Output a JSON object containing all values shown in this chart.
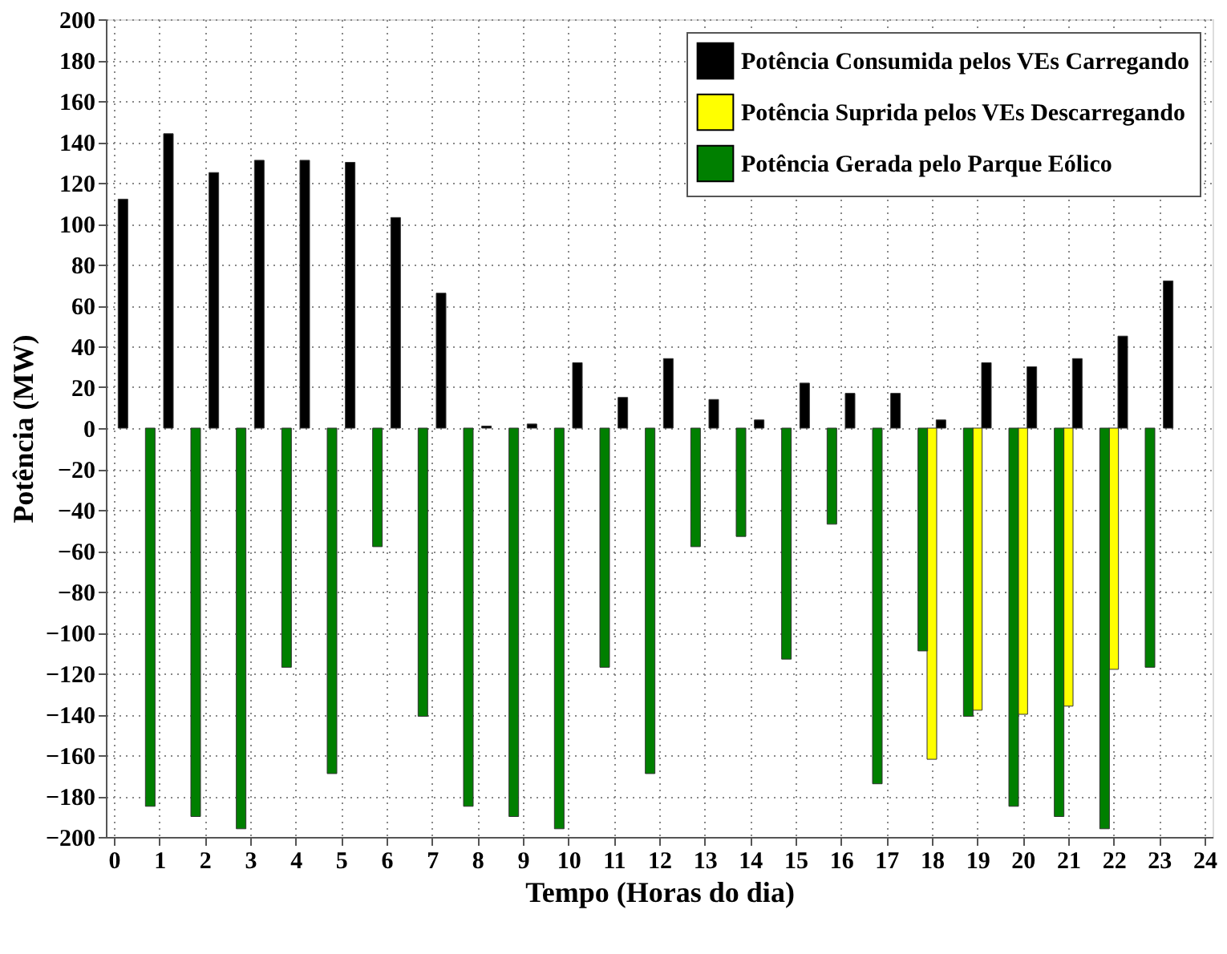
{
  "chart_data": {
    "type": "bar",
    "xlabel": "Tempo (Horas do dia)",
    "ylabel": "Potência (MW)",
    "xlim": [
      0,
      24
    ],
    "xticks": [
      0,
      1,
      2,
      3,
      4,
      5,
      6,
      7,
      8,
      9,
      10,
      11,
      12,
      13,
      14,
      15,
      16,
      17,
      18,
      19,
      20,
      21,
      22,
      23,
      24
    ],
    "ylim": [
      -200,
      200
    ],
    "yticks": [
      -200,
      -180,
      -160,
      -140,
      -120,
      -100,
      -80,
      -60,
      -40,
      -20,
      0,
      20,
      40,
      60,
      80,
      100,
      120,
      140,
      160,
      180,
      200
    ],
    "grid": true,
    "legend": "top right",
    "series": [
      {
        "name": "Potência Consumida pelos VEs Carregando",
        "color": "#000000",
        "x": [
          0.2,
          1.2,
          2.2,
          3.2,
          4.2,
          5.2,
          6.2,
          7.2,
          8.2,
          9.2,
          10.2,
          11.2,
          12.2,
          13.2,
          14.2,
          15.2,
          16.2,
          17.2,
          18.2,
          19.2,
          20.2,
          21.2,
          22.2,
          23.2
        ],
        "values": [
          112,
          144,
          125,
          131,
          131,
          130,
          103,
          66,
          1,
          2,
          32,
          15,
          34,
          14,
          4,
          22,
          17,
          17,
          4,
          32,
          30,
          34,
          45,
          72
        ]
      },
      {
        "name": "Potência Suprida pelos VEs Descarregando",
        "color": "#ffff00",
        "x": [
          18,
          19,
          20,
          21,
          22
        ],
        "values": [
          -162,
          -138,
          -140,
          -136,
          -118
        ]
      },
      {
        "name": "Potência Gerada pelo Parque Eólico",
        "color": "#007f00",
        "x": [
          0.8,
          1.8,
          2.8,
          3.8,
          4.8,
          5.8,
          6.8,
          7.8,
          8.8,
          9.8,
          10.8,
          11.8,
          12.8,
          13.8,
          14.8,
          15.8,
          16.8,
          17.8,
          18.8,
          19.8,
          20.8,
          21.8,
          22.8
        ],
        "values": [
          -185,
          -190,
          -196,
          -117,
          -169,
          -58,
          -141,
          -185,
          -190,
          -196,
          -117,
          -169,
          -58,
          -53,
          -113,
          -47,
          -174,
          -109,
          -141,
          -185,
          -190,
          -196,
          -117
        ]
      }
    ]
  }
}
